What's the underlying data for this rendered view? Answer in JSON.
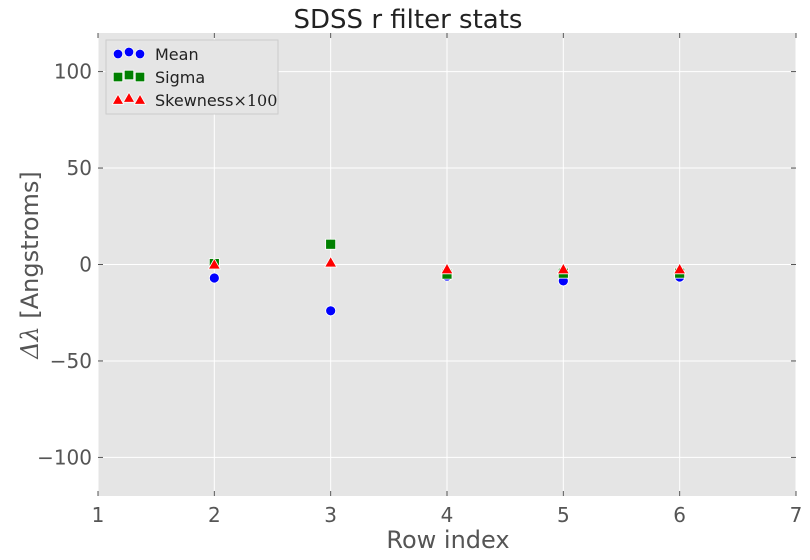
{
  "chart_data": {
    "type": "scatter",
    "title": "SDSS r filter stats",
    "xlabel": "Row index",
    "ylabel": {
      "symbol": "Δλ",
      "text": " [Angstroms]"
    },
    "xlim": [
      1,
      7
    ],
    "ylim": [
      -120,
      120
    ],
    "xticks": [
      1,
      2,
      3,
      4,
      5,
      6,
      7
    ],
    "yticks": [
      -100,
      -50,
      0,
      50,
      100
    ],
    "ytick_labels": [
      "−100",
      "−50",
      "0",
      "50",
      "100"
    ],
    "grid": true,
    "legend_position": "top-left",
    "x": [
      2,
      3,
      4,
      5,
      6
    ],
    "series": [
      {
        "name": "Mean",
        "marker": "circle",
        "color": "#0000ff",
        "values": [
          -7,
          -24,
          -6,
          -8.5,
          -6.5
        ]
      },
      {
        "name": "Sigma",
        "marker": "square",
        "color": "#008000",
        "values": [
          0.5,
          10.5,
          -5,
          -4.5,
          -4.5
        ]
      },
      {
        "name": "Skewness",
        "name_suffix": "×100",
        "marker": "triangle",
        "color": "#ff0000",
        "values": [
          0,
          1,
          -2.5,
          -2.5,
          -2.5
        ]
      }
    ]
  },
  "colors": {
    "plot_background": "#e5e5e5",
    "grid": "#ffffff",
    "tick_text": "#555555"
  }
}
